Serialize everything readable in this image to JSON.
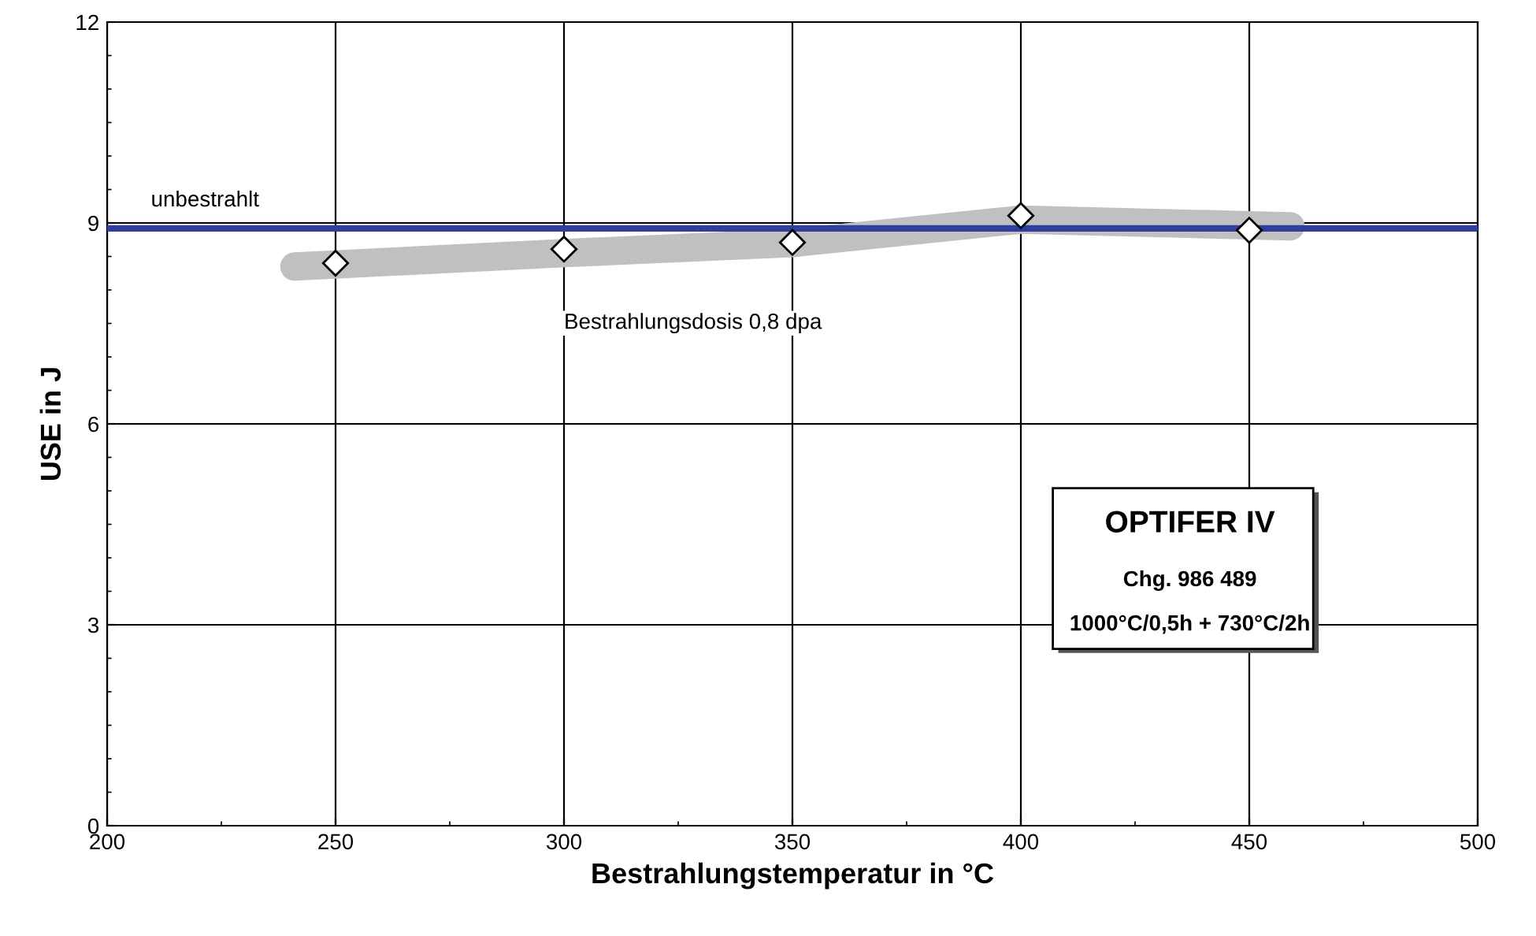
{
  "chart_data": {
    "type": "scatter",
    "xlabel": "Bestrahlungstemperatur in °C",
    "ylabel": "USE in J",
    "xlim": [
      200,
      500
    ],
    "xticks": [
      200,
      250,
      300,
      350,
      400,
      450,
      500
    ],
    "ylim": [
      0,
      12
    ],
    "yticks": [
      0,
      3,
      6,
      9,
      12
    ],
    "grid": true,
    "series": [
      {
        "type": "line",
        "marker": "none",
        "color": "#c0c0c0",
        "x": [
          241,
          300,
          350,
          400,
          459
        ],
        "values": [
          8.35,
          8.55,
          8.7,
          9.05,
          8.95
        ]
      },
      {
        "marker": "diamond",
        "color": "#ffffff",
        "x": [
          250,
          300,
          350,
          400,
          450
        ],
        "values": [
          8.4,
          8.61,
          8.71,
          9.11,
          8.89
        ]
      }
    ],
    "ref_lines": [
      {
        "axis": "y",
        "value": 8.92,
        "label": "unbestrahlt",
        "color": "#2e3f9e"
      }
    ],
    "annotations": [
      {
        "text": "Bestrahlungsdosis 0,8 dpa",
        "x": 300,
        "y": 8.4
      },
      "OPTIFER IV",
      "Chg. 986 489",
      "1000°C/0,5h + 730°C/2h"
    ]
  }
}
